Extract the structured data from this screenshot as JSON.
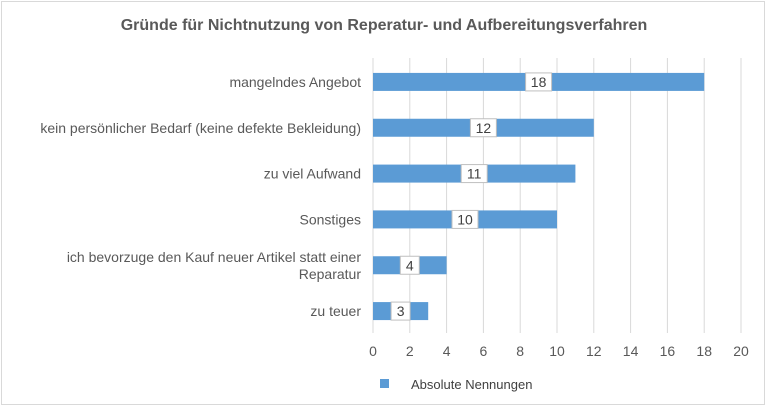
{
  "chart_data": {
    "type": "bar",
    "orientation": "horizontal",
    "title": "Gründe für Nichtnutzung von Reperatur- und Aufbereitungsverfahren",
    "categories": [
      [
        "mangelndes Angebot"
      ],
      [
        "kein persönlicher Bedarf (keine defekte Bekleidung)"
      ],
      [
        "zu viel Aufwand"
      ],
      [
        "Sonstiges"
      ],
      [
        "ich bevorzuge den Kauf neuer Artikel statt einer",
        "Reparatur"
      ],
      [
        "zu teuer"
      ]
    ],
    "series": [
      {
        "name": "Absolute Nennungen",
        "values": [
          18,
          12,
          11,
          10,
          4,
          3
        ],
        "color": "#5b9bd5"
      }
    ],
    "xlim": [
      0,
      20
    ],
    "xticks": [
      0,
      2,
      4,
      6,
      8,
      10,
      12,
      14,
      16,
      18,
      20
    ],
    "grid": "vertical",
    "legend": "bottom",
    "data_labels": true
  }
}
